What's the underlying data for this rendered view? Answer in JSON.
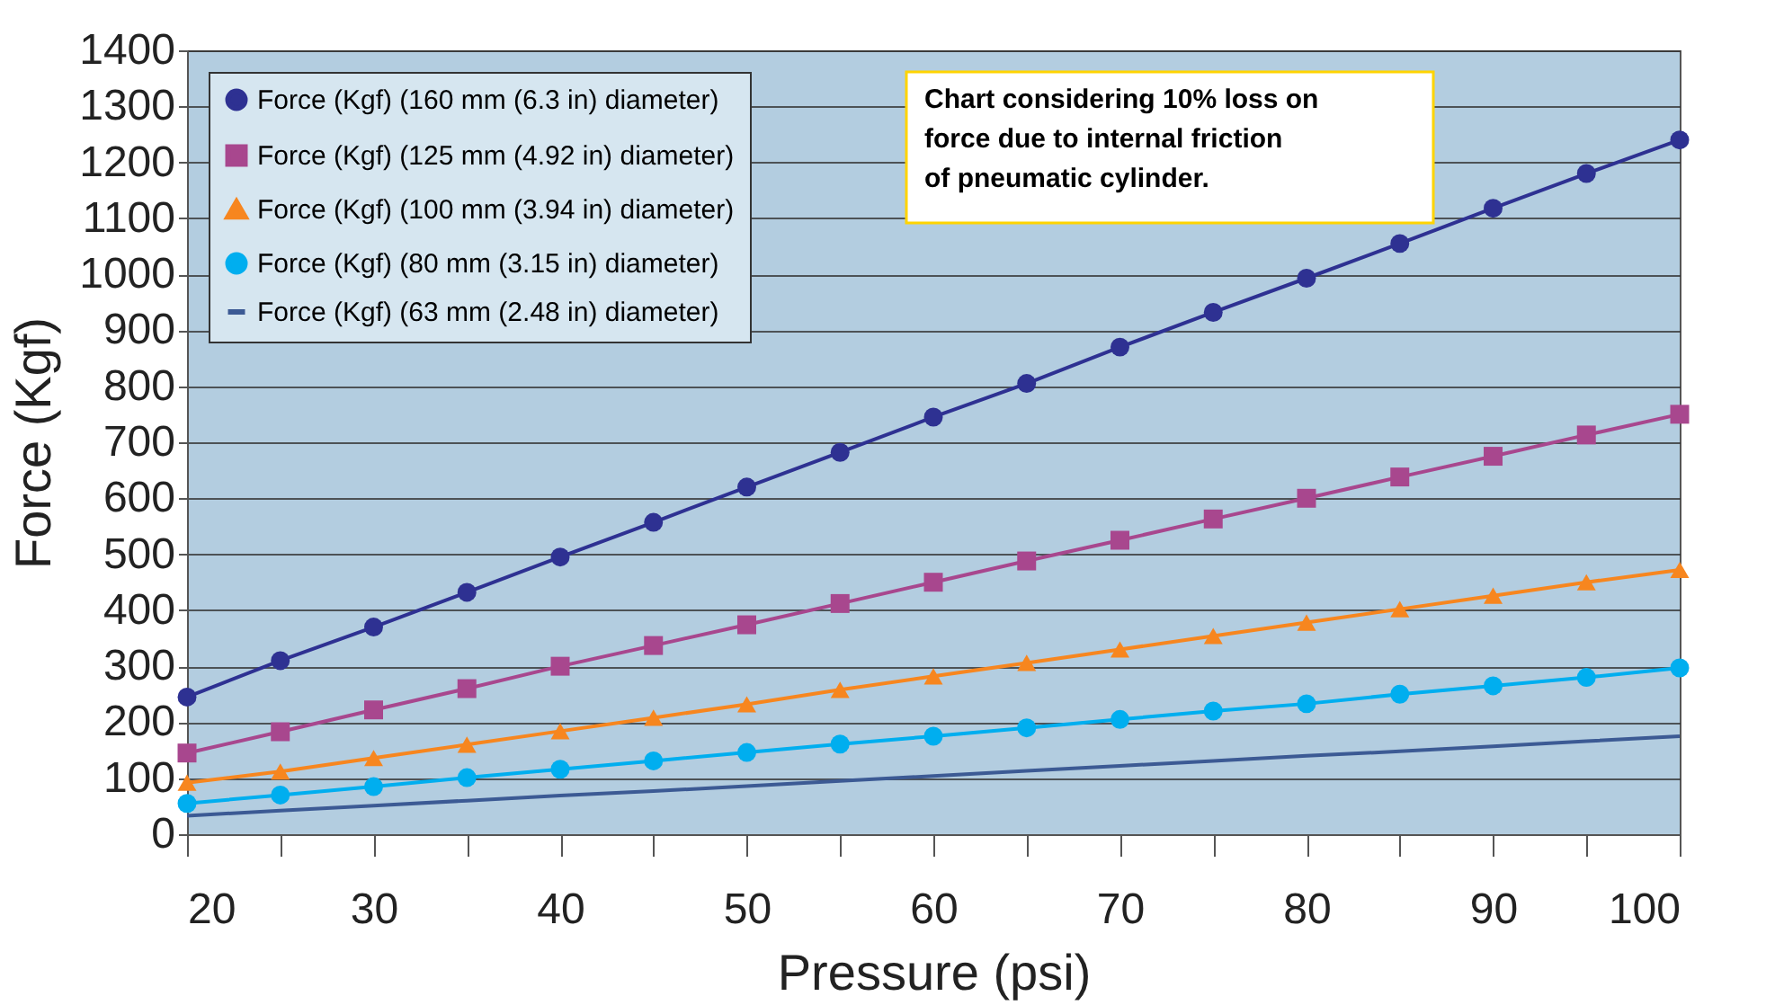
{
  "chart_data": {
    "type": "line",
    "xlabel": "Pressure (psi)",
    "ylabel": "Force (Kgf)",
    "x": [
      20,
      25,
      30,
      35,
      40,
      45,
      50,
      55,
      60,
      65,
      70,
      75,
      80,
      85,
      90,
      95,
      100
    ],
    "series": [
      {
        "name": "Force (Kgf) (160 mm (6.3 in) diameter)",
        "color": "#2e3192",
        "marker": "circle",
        "values": [
          245,
          310,
          370,
          432,
          495,
          557,
          620,
          682,
          745,
          805,
          870,
          932,
          993,
          1055,
          1118,
          1180,
          1240
        ]
      },
      {
        "name": "Force (Kgf) (125 mm (4.92 in) diameter)",
        "color": "#a8478e",
        "marker": "square",
        "values": [
          145,
          183,
          222,
          260,
          300,
          337,
          374,
          412,
          450,
          488,
          525,
          563,
          600,
          638,
          675,
          713,
          750
        ]
      },
      {
        "name": "Force (Kgf) (100 mm (3.94 in) diameter)",
        "color": "#f7861f",
        "marker": "triangle",
        "values": [
          92,
          112,
          136,
          160,
          184,
          208,
          232,
          258,
          282,
          306,
          330,
          354,
          378,
          402,
          426,
          450,
          472
        ]
      },
      {
        "name": "Force (Kgf) (80 mm (3.15 in) diameter)",
        "color": "#00aeef",
        "marker": "circle",
        "values": [
          55,
          70,
          85,
          101,
          116,
          131,
          146,
          161,
          175,
          190,
          205,
          220,
          233,
          250,
          265,
          280,
          297
        ]
      },
      {
        "name": "Force (Kgf) (63 mm (2.48 in) diameter)",
        "color": "#3c5a94",
        "marker": "none",
        "values": [
          33,
          42,
          51,
          60,
          69,
          77,
          86,
          95,
          104,
          113,
          122,
          131,
          140,
          148,
          157,
          166,
          175
        ]
      }
    ],
    "xlim": [
      20,
      100
    ],
    "xticks": [
      20,
      {
        "value": 25,
        "label": null
      },
      30,
      {
        "value": 35,
        "label": null
      },
      40,
      {
        "value": 45,
        "label": null
      },
      50,
      {
        "value": 55,
        "label": null
      },
      60,
      {
        "value": 65,
        "label": null
      },
      70,
      {
        "value": 75,
        "label": null
      },
      80,
      {
        "value": 85,
        "label": null
      },
      90,
      {
        "value": 95,
        "label": null
      },
      100
    ],
    "ylim": [
      0,
      1400
    ],
    "yticks": [
      0,
      100,
      200,
      300,
      400,
      500,
      600,
      700,
      800,
      900,
      1000,
      1100,
      1200,
      1300,
      1400
    ],
    "grid": "y",
    "legend": "top left",
    "line_style": "solid",
    "annotations": [
      "Chart considering 10% loss on force due to internal friction of pneumatic cylinder."
    ]
  }
}
